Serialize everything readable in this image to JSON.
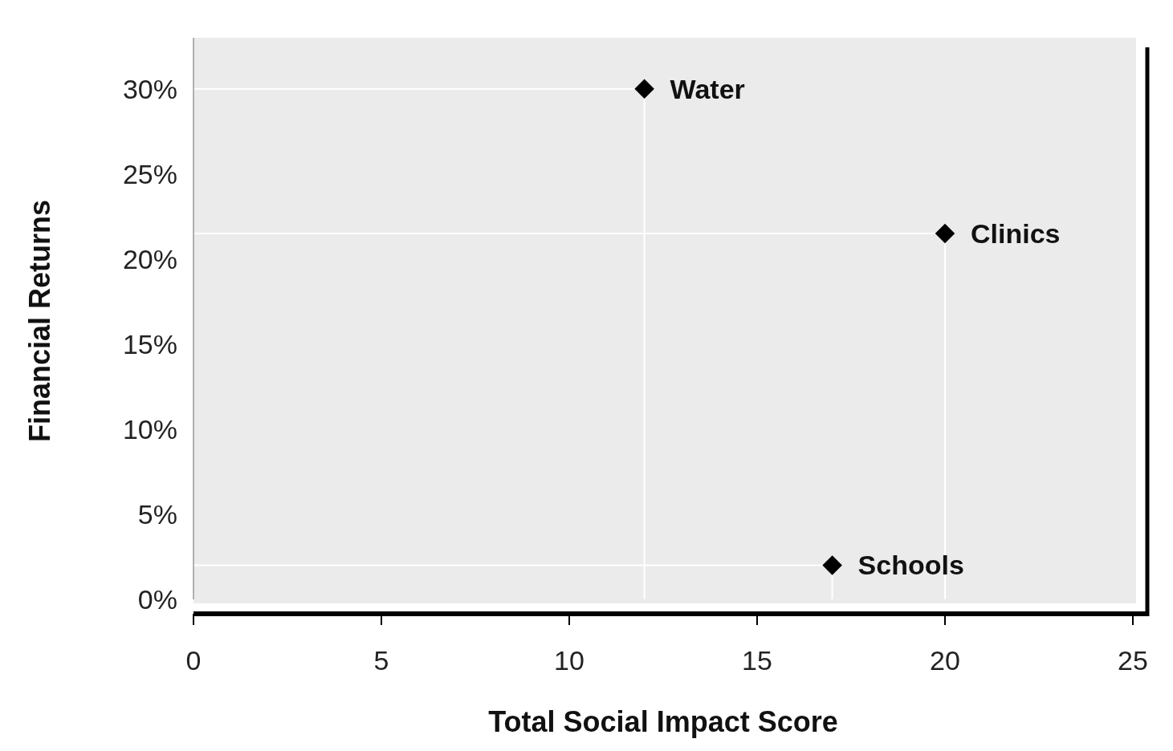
{
  "chart_data": {
    "type": "scatter",
    "xlabel": "Total Social Impact Score",
    "ylabel": "Financial Returns",
    "x": [
      12,
      20,
      17
    ],
    "values": [
      30,
      21.5,
      2
    ],
    "color": "#000000",
    "marker": "diamond",
    "grid": false,
    "series": [
      {
        "type": "line",
        "color": "#ffffff",
        "marker": "none",
        "x": [
          0,
          12,
          12
        ],
        "values": [
          30,
          30,
          0
        ]
      },
      {
        "type": "line",
        "color": "#ffffff",
        "marker": "none",
        "x": [
          0,
          20,
          20
        ],
        "values": [
          21.5,
          21.5,
          0
        ]
      },
      {
        "type": "line",
        "color": "#ffffff",
        "marker": "none",
        "x": [
          0,
          17,
          17
        ],
        "values": [
          2,
          2,
          0
        ]
      }
    ],
    "xlim": [
      0,
      25
    ],
    "ylim": [
      0,
      33
    ],
    "xticks": [
      0,
      5,
      10,
      15,
      20,
      25
    ],
    "yticks": [
      {
        "value": 0,
        "label": "0%"
      },
      {
        "value": 5,
        "label": "5%"
      },
      {
        "value": 10,
        "label": "10%"
      },
      {
        "value": 15,
        "label": "15%"
      },
      {
        "value": 20,
        "label": "20%"
      },
      {
        "value": 25,
        "label": "25%"
      },
      {
        "value": 30,
        "label": "30%"
      }
    ],
    "annotations": [
      {
        "text": "Water",
        "x": 12,
        "y": 30
      },
      {
        "text": "Clinics",
        "x": 20,
        "y": 21.5
      },
      {
        "text": "Schools",
        "x": 17,
        "y": 2
      }
    ]
  }
}
